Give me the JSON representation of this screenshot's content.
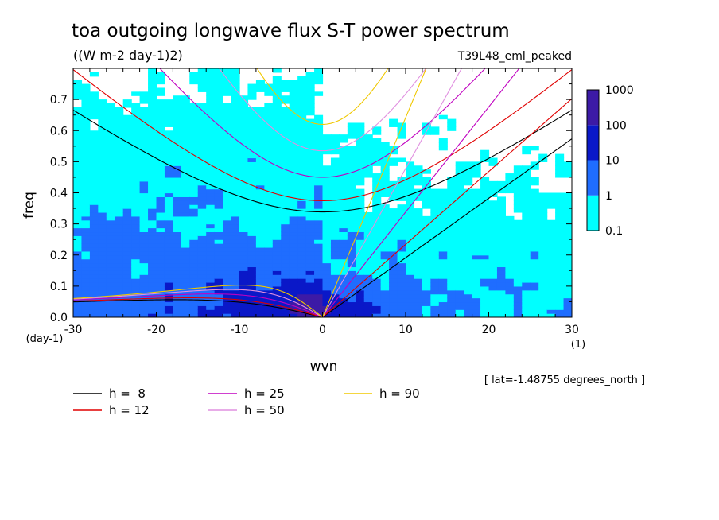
{
  "chart_data": {
    "type": "heatmap",
    "title": "toa outgoing longwave flux S-T power spectrum",
    "subtitle": "((W m-2 day-1)2)",
    "run_label": "T39L48_eml_peaked",
    "xlabel": "wvn",
    "ylabel": "freq",
    "x_unit": "(1)",
    "y_unit": "(day-1)",
    "xlim": [
      -30,
      30
    ],
    "ylim": [
      0,
      0.8
    ],
    "x_ticks": [
      "-30",
      "-20",
      "-10",
      "0",
      "10",
      "20",
      "30"
    ],
    "y_ticks": [
      "0.0",
      "0.1",
      "0.2",
      "0.3",
      "0.4",
      "0.5",
      "0.6",
      "0.7"
    ],
    "footnote": "[ lat=-1.48755 degrees_north ]",
    "colorbar": {
      "levels": [
        "0.1",
        "1",
        "10",
        "100",
        "1000"
      ],
      "colors": [
        "#00ffff",
        "#1f6dff",
        "#0a18c8",
        "#3c1aa6"
      ]
    },
    "dispersion_curves": [
      {
        "label": "h =  8",
        "h": 8,
        "color": "#000000"
      },
      {
        "label": "h = 12",
        "h": 12,
        "color": "#e00000"
      },
      {
        "label": "h = 25",
        "h": 25,
        "color": "#c000c0"
      },
      {
        "label": "h = 50",
        "h": 50,
        "color": "#e090e0"
      },
      {
        "label": "h = 90",
        "h": 90,
        "color": "#f0c800"
      }
    ],
    "peak_regions": [
      {
        "x": 0,
        "y": 0.03,
        "level": "1000"
      },
      {
        "x": -3,
        "y": 0.04,
        "level": "100"
      },
      {
        "x": -12,
        "y": 0.2,
        "level": "10"
      },
      {
        "x": 10,
        "y": 0.2,
        "level": "1"
      }
    ]
  }
}
